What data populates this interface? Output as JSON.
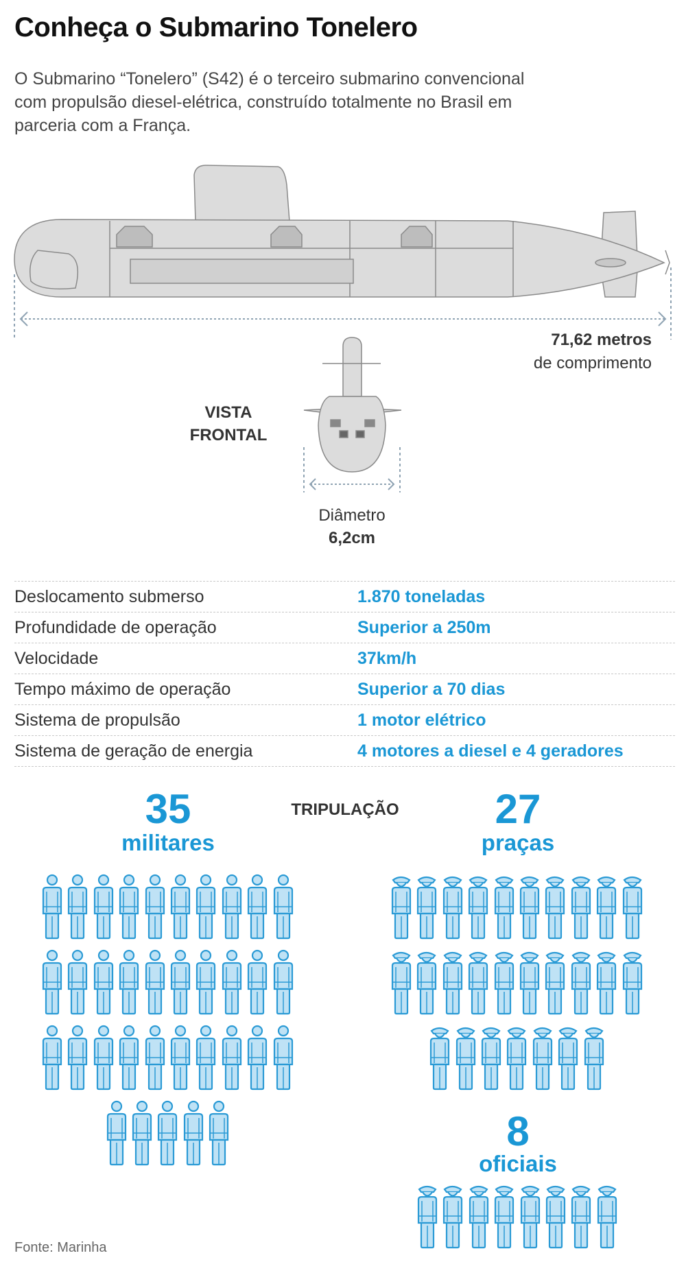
{
  "title": "Conheça o Submarino Tonelero",
  "description": [
    "O Submarino “Tonelero” (S42) é o terceiro submarino convencional",
    "com propulsão diesel-elétrica, construído totalmente no Brasil em",
    "parceria com a França."
  ],
  "length": {
    "value": "71,62 metros",
    "label": "de comprimento"
  },
  "front_view": {
    "line1": "VISTA",
    "line2": "FRONTAL"
  },
  "diameter": {
    "label": "Diâmetro",
    "value": "6,2cm"
  },
  "specs": [
    {
      "label": "Deslocamento submerso",
      "value": "1.870 toneladas"
    },
    {
      "label": "Profundidade de operação",
      "value": "Superior a 250m"
    },
    {
      "label": "Velocidade",
      "value": "37km/h"
    },
    {
      "label": "Tempo máximo de operação",
      "value": "Superior a 70 dias"
    },
    {
      "label": "Sistema de propulsão",
      "value": "1 motor elétrico"
    },
    {
      "label": "Sistema de geração de energia",
      "value": "4 motores a diesel e 4 geradores"
    }
  ],
  "crew": {
    "heading": "TRIPULAÇÃO",
    "militares": {
      "count": "35",
      "label": "militares",
      "n": 35
    },
    "pracas": {
      "count": "27",
      "label": "praças",
      "n": 27
    },
    "oficiais": {
      "count": "8",
      "label": "oficiais",
      "n": 8
    }
  },
  "source": "Fonte: Marinha",
  "colors": {
    "accent": "#1a97d5",
    "figure_fill": "#bfe2f5",
    "figure_stroke": "#2a9ad5",
    "hull": "#dcdcdc"
  }
}
